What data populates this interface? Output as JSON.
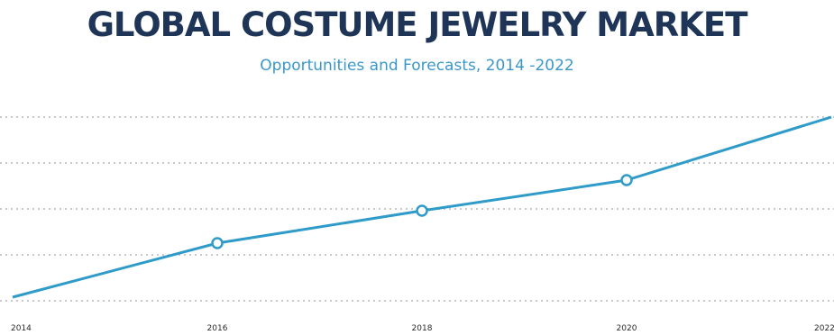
{
  "chart_data": {
    "type": "line",
    "title": "GLOBAL COSTUME JEWELRY MARKET",
    "subtitle": "Opportunities and Forecasts, 2014 -2022",
    "xlabel": "",
    "ylabel": "",
    "categories": [
      "2014",
      "2016",
      "2018",
      "2020",
      "2022"
    ],
    "series": [
      {
        "values": [
          0,
          30,
          48,
          65,
          100
        ],
        "markers": [
          false,
          true,
          true,
          true,
          false
        ]
      }
    ],
    "ylim": [
      0,
      100
    ],
    "grid": true,
    "grid_style": "dotted",
    "line_color": "#2f9bc9",
    "gridline_color": "#c9c9c9"
  }
}
